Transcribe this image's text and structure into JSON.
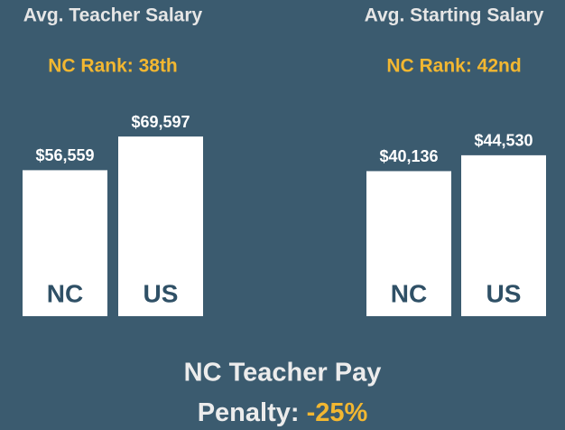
{
  "chart_data": [
    {
      "type": "bar",
      "title": "Avg. Teacher Salary",
      "subtitle": "NC Rank: 38th",
      "categories": [
        "NC",
        "US"
      ],
      "values": [
        56559,
        69597
      ],
      "value_labels": [
        "$56,559",
        "$69,597"
      ],
      "color": "#ffffff",
      "ylim": [
        0,
        77000
      ]
    },
    {
      "type": "bar",
      "title": "Avg. Starting Salary",
      "subtitle": "NC Rank: 42nd",
      "categories": [
        "NC",
        "US"
      ],
      "values": [
        40136,
        44530
      ],
      "value_labels": [
        "$40,136",
        "$44,530"
      ],
      "color": "#ffffff",
      "ylim": [
        0,
        55000
      ]
    }
  ],
  "footer": {
    "line1": "NC Teacher Pay",
    "line2": "Penalty:",
    "penalty": "-25%"
  }
}
